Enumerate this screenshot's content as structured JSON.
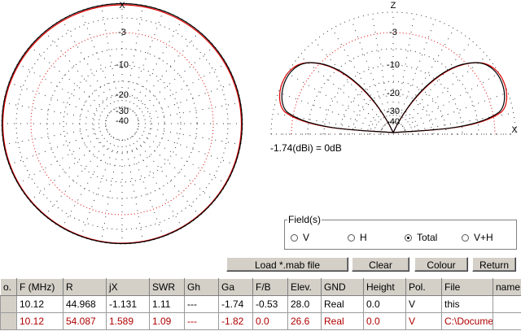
{
  "left_plot": {
    "axis_label": "X",
    "ring_labels": [
      "-3",
      "-10",
      "-20",
      "-30",
      "-40"
    ]
  },
  "right_plot": {
    "top_label": "Z",
    "right_label": "X",
    "ring_labels": [
      "-3",
      "-10",
      "-20",
      "-30",
      "-40"
    ],
    "gain_note": "-1.74(dBi) = 0dB"
  },
  "field_group": {
    "title": "Field(s)",
    "options": [
      "V",
      "H",
      "Total",
      "V+H"
    ],
    "selected_index": 2
  },
  "buttons": [
    "Load *.mab file",
    "Clear",
    "Colour",
    "Return"
  ],
  "table": {
    "headers": [
      "o.",
      "F (MHz)",
      "R",
      "jX",
      "SWR",
      "Gh",
      "Ga",
      "F/B",
      "Elev.",
      "GND",
      "Height",
      "Pol.",
      "File",
      "name"
    ],
    "rows": [
      [
        "",
        "10.12",
        "44.968",
        "-1.131",
        "1.11",
        "---",
        "-1.74",
        "-0.53",
        "28.0",
        "Real",
        "0.0",
        "V",
        "this",
        ""
      ],
      [
        "",
        "10.12",
        "54.087",
        "1.589",
        "1.09",
        "---",
        "-1.82",
        "0.0",
        "26.6",
        "Real",
        "0.0",
        "V",
        "C:\\Docume",
        ""
      ]
    ]
  }
}
